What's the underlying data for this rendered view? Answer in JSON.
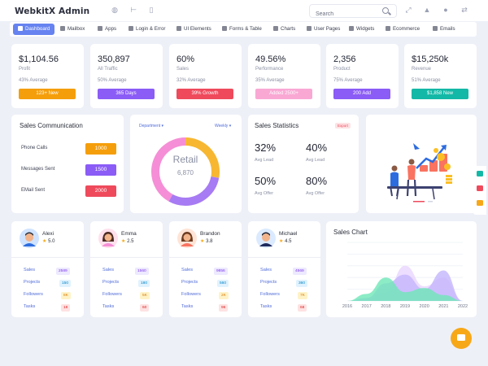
{
  "app": {
    "brand": "WebkitX Admin"
  },
  "search": {
    "placeholder": "Search"
  },
  "nav": [
    {
      "label": "Dashboard",
      "icon": "monitor-icon"
    },
    {
      "label": "Mailbox",
      "icon": "mail-icon"
    },
    {
      "label": "Apps",
      "icon": "grid-icon"
    },
    {
      "label": "Login & Error",
      "icon": "lock-icon"
    },
    {
      "label": "UI Elements",
      "icon": "edit-icon"
    },
    {
      "label": "Forms & Table",
      "icon": "forms-icon"
    },
    {
      "label": "Charts",
      "icon": "chart-icon"
    },
    {
      "label": "User Pages",
      "icon": "user-pages-icon"
    },
    {
      "label": "Widgets",
      "icon": "widgets-icon"
    },
    {
      "label": "Ecommerce",
      "icon": "cart-icon"
    },
    {
      "label": "Emails",
      "icon": "envelope-icon"
    }
  ],
  "stats": [
    {
      "value": "$1,104.56",
      "label": "Profit",
      "avg": "43% Average",
      "btn": "123+ New",
      "color": "#f59e0b"
    },
    {
      "value": "350,897",
      "label": "All Traffic",
      "avg": "50% Average",
      "btn": "365 Days",
      "color": "#8b5cf6"
    },
    {
      "value": "60%",
      "label": "Sales",
      "avg": "32% Average",
      "btn": "39% Growth",
      "color": "#ef4a5c"
    },
    {
      "value": "49.56%",
      "label": "Performance",
      "avg": "35% Average",
      "btn": "Added 2500+",
      "color": "#f9a8d4"
    },
    {
      "value": "2,356",
      "label": "Product",
      "avg": "75% Average",
      "btn": "200 Add",
      "color": "#8b5cf6"
    },
    {
      "value": "$15,250k",
      "label": "Revenue",
      "avg": "51% Average",
      "btn": "$1,858 New",
      "color": "#14b8a6"
    }
  ],
  "sales_comm": {
    "title": "Sales Communication",
    "rows": [
      {
        "label": "Phone Calls",
        "value": "1000",
        "color": "#f59e0b"
      },
      {
        "label": "Messages Sent",
        "value": "1500",
        "color": "#8b5cf6"
      },
      {
        "label": "EMail Sent",
        "value": "2000",
        "color": "#ef4a5c"
      }
    ]
  },
  "donut": {
    "dept_label": "Department ▾",
    "period_label": "Weekly ▾",
    "center_title": "Retail",
    "center_value": "6,870",
    "segments": [
      {
        "value": 0.28,
        "color": "#f7b731"
      },
      {
        "value": 0.3,
        "color": "#a77bf3"
      },
      {
        "value": 0.42,
        "color": "#f58ed6"
      }
    ]
  },
  "sales_stats": {
    "title": "Sales Statistics",
    "export": "Export",
    "items": [
      {
        "value": "32%",
        "label": "Avg Lead"
      },
      {
        "value": "40%",
        "label": "Avg Lead"
      },
      {
        "value": "50%",
        "label": "Avg Offer"
      },
      {
        "value": "80%",
        "label": "Avg Offer"
      }
    ]
  },
  "profiles": [
    {
      "name": "Alexi",
      "rating": "5.0",
      "avatar": "male-avatar",
      "rows": [
        {
          "label": "Sales",
          "value": "2589",
          "bg": "#ede9fe",
          "fg": "#7c3aed"
        },
        {
          "label": "Projects",
          "value": "150",
          "bg": "#e0f2fe",
          "fg": "#0284c7"
        },
        {
          "label": "Followers",
          "value": "8K",
          "bg": "#fef3c7",
          "fg": "#d97706"
        },
        {
          "label": "Tasks",
          "value": "18",
          "bg": "#fee2e2",
          "fg": "#dc2626"
        }
      ]
    },
    {
      "name": "Emma",
      "rating": "2.5",
      "avatar": "female-avatar",
      "rows": [
        {
          "label": "Sales",
          "value": "1560",
          "bg": "#ede9fe",
          "fg": "#7c3aed"
        },
        {
          "label": "Projects",
          "value": "180",
          "bg": "#e0f2fe",
          "fg": "#0284c7"
        },
        {
          "label": "Followers",
          "value": "5K",
          "bg": "#fef3c7",
          "fg": "#d97706"
        },
        {
          "label": "Tasks",
          "value": "60",
          "bg": "#fee2e2",
          "fg": "#dc2626"
        }
      ]
    },
    {
      "name": "Brandon",
      "rating": "3.8",
      "avatar": "female-avatar",
      "rows": [
        {
          "label": "Sales",
          "value": "9856",
          "bg": "#ede9fe",
          "fg": "#7c3aed"
        },
        {
          "label": "Projects",
          "value": "560",
          "bg": "#e0f2fe",
          "fg": "#0284c7"
        },
        {
          "label": "Followers",
          "value": "2K",
          "bg": "#fef3c7",
          "fg": "#d97706"
        },
        {
          "label": "Tasks",
          "value": "96",
          "bg": "#fee2e2",
          "fg": "#dc2626"
        }
      ]
    },
    {
      "name": "Michael",
      "rating": "4.5",
      "avatar": "male-avatar",
      "rows": [
        {
          "label": "Sales",
          "value": "4569",
          "bg": "#ede9fe",
          "fg": "#7c3aed"
        },
        {
          "label": "Projects",
          "value": "360",
          "bg": "#e0f2fe",
          "fg": "#0284c7"
        },
        {
          "label": "Followers",
          "value": "7K",
          "bg": "#fef3c7",
          "fg": "#d97706"
        },
        {
          "label": "Tasks",
          "value": "68",
          "bg": "#fee2e2",
          "fg": "#dc2626"
        }
      ]
    }
  ],
  "sales_chart": {
    "title": "Sales Chart"
  },
  "chart_data": {
    "type": "area",
    "title": "Sales Chart",
    "x": [
      "2016",
      "2017",
      "2018",
      "2019",
      "2020",
      "2021",
      "2022"
    ],
    "ylim": [
      0,
      100
    ],
    "grid": true,
    "series": [
      {
        "values": [
          0,
          12,
          40,
          15,
          22,
          10,
          0
        ],
        "color": "#6ee7b7"
      },
      {
        "values": [
          0,
          5,
          30,
          45,
          20,
          52,
          0
        ],
        "color": "#c4b5fd"
      },
      {
        "values": [
          0,
          3,
          15,
          60,
          25,
          40,
          0
        ],
        "color": "#e9d5ff"
      }
    ]
  },
  "side_tools": [
    {
      "icon": "settings-icon",
      "color": "#14b8a6"
    },
    {
      "icon": "palette-icon",
      "color": "#ef4a5c"
    },
    {
      "icon": "image-icon",
      "color": "#f7a818"
    }
  ],
  "fab": {
    "icon": "chat-icon"
  }
}
